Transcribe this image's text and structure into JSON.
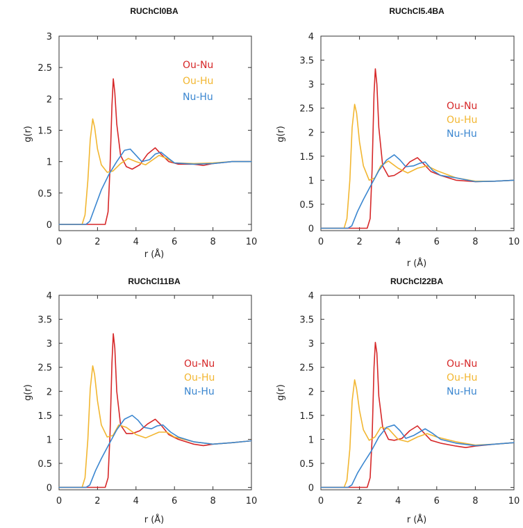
{
  "chart_data": [
    {
      "type": "line",
      "title": "RUChCl0BA",
      "xlabel": "r (Å)",
      "ylabel": "g(r)",
      "xlim": [
        0,
        10
      ],
      "ylim": [
        -0.1,
        3
      ],
      "xticks": [
        "0",
        "2",
        "4",
        "6",
        "8",
        "10"
      ],
      "yticks": [
        "0",
        "0.5",
        "1",
        "1.5",
        "2",
        "2.5",
        "3"
      ],
      "legend_position": "top-right",
      "series": [
        {
          "name": "Ou-Nu",
          "color": "#d62728",
          "x": [
            0,
            2.4,
            2.55,
            2.65,
            2.75,
            2.82,
            2.9,
            3.0,
            3.2,
            3.5,
            3.8,
            4.2,
            4.6,
            5.0,
            5.3,
            5.7,
            6.2,
            7.0,
            7.5,
            8.0,
            9.0,
            10
          ],
          "y": [
            0,
            0,
            0.2,
            0.9,
            1.9,
            2.32,
            2.1,
            1.6,
            1.1,
            0.92,
            0.88,
            0.95,
            1.12,
            1.22,
            1.12,
            1.0,
            0.96,
            0.96,
            0.94,
            0.97,
            1.0,
            1.0
          ]
        },
        {
          "name": "Ou-Hu",
          "color": "#f2b630",
          "x": [
            0,
            1.2,
            1.35,
            1.5,
            1.62,
            1.75,
            1.85,
            2.0,
            2.2,
            2.5,
            2.8,
            3.2,
            3.6,
            4.0,
            4.5,
            5.2,
            5.6,
            6.0,
            7.0,
            8.0,
            9.0,
            10
          ],
          "y": [
            0,
            0,
            0.15,
            0.7,
            1.35,
            1.68,
            1.55,
            1.2,
            0.95,
            0.83,
            0.85,
            0.97,
            1.05,
            1.0,
            0.95,
            1.1,
            1.05,
            0.98,
            0.97,
            0.98,
            1.0,
            1.0
          ]
        },
        {
          "name": "Nu-Hu",
          "color": "#3a86d0",
          "x": [
            0,
            1.4,
            1.6,
            1.9,
            2.2,
            2.6,
            3.0,
            3.4,
            3.7,
            4.0,
            4.3,
            4.7,
            5.0,
            5.3,
            5.7,
            6.0,
            7.0,
            8.0,
            9.0,
            10
          ],
          "y": [
            0,
            0,
            0.05,
            0.3,
            0.55,
            0.8,
            1.0,
            1.18,
            1.2,
            1.1,
            1.0,
            1.03,
            1.12,
            1.15,
            1.05,
            0.98,
            0.96,
            0.97,
            1.0,
            1.0
          ]
        }
      ]
    },
    {
      "type": "line",
      "title": "RUChCl5.4BA",
      "xlabel": "r (Å)",
      "ylabel": "g(r)",
      "xlim": [
        0,
        10
      ],
      "ylim": [
        -0.05,
        4
      ],
      "xticks": [
        "0",
        "2",
        "4",
        "6",
        "8",
        "10"
      ],
      "yticks": [
        "0",
        "0.5",
        "1",
        "1.5",
        "2",
        "2.5",
        "3",
        "3.5",
        "4"
      ],
      "legend_position": "right",
      "series": [
        {
          "name": "Ou-Nu",
          "color": "#d62728",
          "x": [
            0,
            2.4,
            2.55,
            2.65,
            2.75,
            2.82,
            2.9,
            3.0,
            3.2,
            3.5,
            3.8,
            4.2,
            4.6,
            5.0,
            5.3,
            5.7,
            6.2,
            7.0,
            8.0,
            9.0,
            10
          ],
          "y": [
            0,
            0,
            0.2,
            1.2,
            2.8,
            3.32,
            3.0,
            2.1,
            1.3,
            1.08,
            1.1,
            1.2,
            1.38,
            1.47,
            1.35,
            1.18,
            1.1,
            1.0,
            0.97,
            0.98,
            1.0
          ]
        },
        {
          "name": "Ou-Hu",
          "color": "#f2b630",
          "x": [
            0,
            1.2,
            1.35,
            1.5,
            1.62,
            1.75,
            1.85,
            2.0,
            2.2,
            2.5,
            2.8,
            3.1,
            3.5,
            4.0,
            4.5,
            5.0,
            5.5,
            6.0,
            7.0,
            8.0,
            9.0,
            10
          ],
          "y": [
            0,
            0,
            0.2,
            1.0,
            2.1,
            2.58,
            2.4,
            1.8,
            1.3,
            1.0,
            1.05,
            1.3,
            1.4,
            1.25,
            1.15,
            1.25,
            1.3,
            1.2,
            1.05,
            0.98,
            0.98,
            1.0
          ]
        },
        {
          "name": "Nu-Hu",
          "color": "#3a86d0",
          "x": [
            0,
            1.4,
            1.6,
            1.9,
            2.2,
            2.6,
            3.0,
            3.4,
            3.8,
            4.1,
            4.4,
            4.8,
            5.1,
            5.4,
            5.8,
            6.2,
            7.0,
            8.0,
            9.0,
            10
          ],
          "y": [
            0,
            0,
            0.05,
            0.35,
            0.6,
            0.9,
            1.2,
            1.42,
            1.53,
            1.42,
            1.28,
            1.3,
            1.35,
            1.38,
            1.2,
            1.1,
            1.05,
            0.97,
            0.98,
            1.0
          ]
        }
      ]
    },
    {
      "type": "line",
      "title": "RUChCl11BA",
      "xlabel": "r (Å)",
      "ylabel": "g(r)",
      "xlim": [
        0,
        10
      ],
      "ylim": [
        -0.05,
        4
      ],
      "xticks": [
        "0",
        "2",
        "4",
        "6",
        "8",
        "10"
      ],
      "yticks": [
        "0",
        "0.5",
        "1",
        "1.5",
        "2",
        "2.5",
        "3",
        "3.5",
        "4"
      ],
      "legend_position": "right",
      "series": [
        {
          "name": "Ou-Nu",
          "color": "#d62728",
          "x": [
            0,
            2.4,
            2.55,
            2.65,
            2.75,
            2.82,
            2.9,
            3.0,
            3.2,
            3.5,
            3.8,
            4.2,
            4.6,
            5.0,
            5.3,
            5.7,
            6.2,
            7.0,
            7.5,
            8.0,
            9.0,
            10
          ],
          "y": [
            0,
            0,
            0.2,
            1.1,
            2.6,
            3.2,
            2.9,
            2.0,
            1.3,
            1.12,
            1.12,
            1.18,
            1.32,
            1.42,
            1.3,
            1.1,
            1.0,
            0.9,
            0.87,
            0.9,
            0.93,
            0.97
          ]
        },
        {
          "name": "Ou-Hu",
          "color": "#f2b630",
          "x": [
            0,
            1.2,
            1.35,
            1.5,
            1.62,
            1.75,
            1.85,
            2.0,
            2.2,
            2.5,
            2.8,
            3.1,
            3.5,
            4.0,
            4.5,
            5.2,
            5.6,
            6.0,
            7.0,
            8.0,
            9.0,
            10
          ],
          "y": [
            0,
            0,
            0.2,
            1.0,
            2.05,
            2.53,
            2.35,
            1.8,
            1.3,
            1.05,
            1.08,
            1.3,
            1.25,
            1.1,
            1.03,
            1.15,
            1.15,
            1.05,
            0.95,
            0.9,
            0.93,
            0.97
          ]
        },
        {
          "name": "Nu-Hu",
          "color": "#3a86d0",
          "x": [
            0,
            1.4,
            1.6,
            1.9,
            2.2,
            2.6,
            3.0,
            3.4,
            3.8,
            4.1,
            4.4,
            4.8,
            5.1,
            5.4,
            5.8,
            6.2,
            7.0,
            8.0,
            9.0,
            10
          ],
          "y": [
            0,
            0,
            0.05,
            0.35,
            0.6,
            0.9,
            1.2,
            1.42,
            1.5,
            1.4,
            1.25,
            1.22,
            1.28,
            1.3,
            1.15,
            1.05,
            0.95,
            0.9,
            0.93,
            0.97
          ]
        }
      ]
    },
    {
      "type": "line",
      "title": "RUChCl22BA",
      "xlabel": "r (Å)",
      "ylabel": "g(r)",
      "xlim": [
        0,
        10
      ],
      "ylim": [
        -0.05,
        4
      ],
      "xticks": [
        "0",
        "2",
        "4",
        "6",
        "8",
        "10"
      ],
      "yticks": [
        "0",
        "0.5",
        "1",
        "1.5",
        "2",
        "2.5",
        "3",
        "3.5",
        "4"
      ],
      "legend_position": "right",
      "series": [
        {
          "name": "Ou-Nu",
          "color": "#d62728",
          "x": [
            0,
            2.4,
            2.55,
            2.65,
            2.75,
            2.82,
            2.9,
            3.0,
            3.2,
            3.5,
            3.8,
            4.2,
            4.6,
            5.0,
            5.3,
            5.7,
            6.2,
            7.0,
            7.5,
            8.0,
            9.0,
            10
          ],
          "y": [
            0,
            0,
            0.2,
            1.0,
            2.5,
            3.02,
            2.8,
            1.9,
            1.25,
            1.0,
            0.98,
            1.02,
            1.18,
            1.28,
            1.15,
            0.98,
            0.92,
            0.86,
            0.83,
            0.86,
            0.9,
            0.93
          ]
        },
        {
          "name": "Ou-Hu",
          "color": "#f2b630",
          "x": [
            0,
            1.2,
            1.35,
            1.5,
            1.62,
            1.75,
            1.85,
            2.0,
            2.2,
            2.5,
            2.8,
            3.1,
            3.5,
            4.0,
            4.5,
            5.0,
            5.5,
            6.0,
            7.0,
            8.0,
            9.0,
            10
          ],
          "y": [
            0,
            0,
            0.15,
            0.8,
            1.8,
            2.24,
            2.05,
            1.6,
            1.2,
            0.98,
            1.05,
            1.25,
            1.22,
            1.0,
            0.95,
            1.05,
            1.12,
            1.05,
            0.95,
            0.88,
            0.9,
            0.93
          ]
        },
        {
          "name": "Nu-Hu",
          "color": "#3a86d0",
          "x": [
            0,
            1.4,
            1.6,
            1.9,
            2.2,
            2.6,
            3.0,
            3.4,
            3.8,
            4.1,
            4.4,
            4.8,
            5.1,
            5.4,
            5.8,
            6.2,
            7.0,
            8.0,
            9.0,
            10
          ],
          "y": [
            0,
            0,
            0.05,
            0.3,
            0.5,
            0.75,
            1.05,
            1.25,
            1.3,
            1.18,
            1.02,
            1.08,
            1.15,
            1.22,
            1.12,
            1.0,
            0.92,
            0.87,
            0.9,
            0.93
          ]
        }
      ]
    }
  ]
}
